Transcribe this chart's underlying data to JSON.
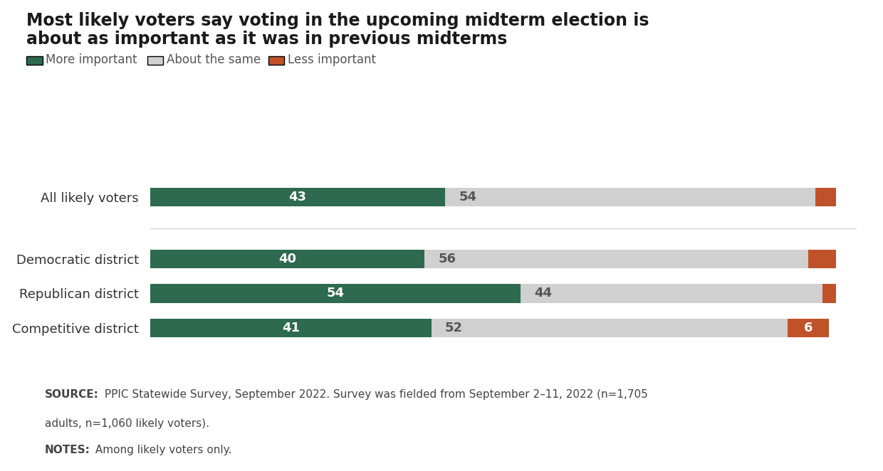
{
  "title_line1": "Most likely voters say voting in the upcoming midterm election is",
  "title_line2": "about as important as it was in previous midterms",
  "categories": [
    "All likely voters",
    "Democratic district",
    "Republican district",
    "Competitive district"
  ],
  "more_important": [
    43,
    40,
    54,
    41
  ],
  "about_same": [
    54,
    56,
    44,
    52
  ],
  "less_important": [
    3,
    4,
    2,
    6
  ],
  "color_more": "#2d6a4f",
  "color_same": "#d0d0d0",
  "color_less": "#c0522a",
  "color_bg": "#ffffff",
  "color_footnote_bg": "#e5e5e5",
  "legend_labels": [
    "More important",
    "About the same",
    "Less important"
  ],
  "source_bold": "SOURCE:",
  "source_rest": " PPIC Statewide Survey, September 2022. Survey was fielded from September 2–11, 2022 (n=1,705",
  "source_line2": "adults, n=1,060 likely voters).",
  "notes_bold": "NOTES:",
  "notes_rest": " Among likely voters only.",
  "bar_height": 0.55,
  "xlim": [
    0,
    103
  ]
}
